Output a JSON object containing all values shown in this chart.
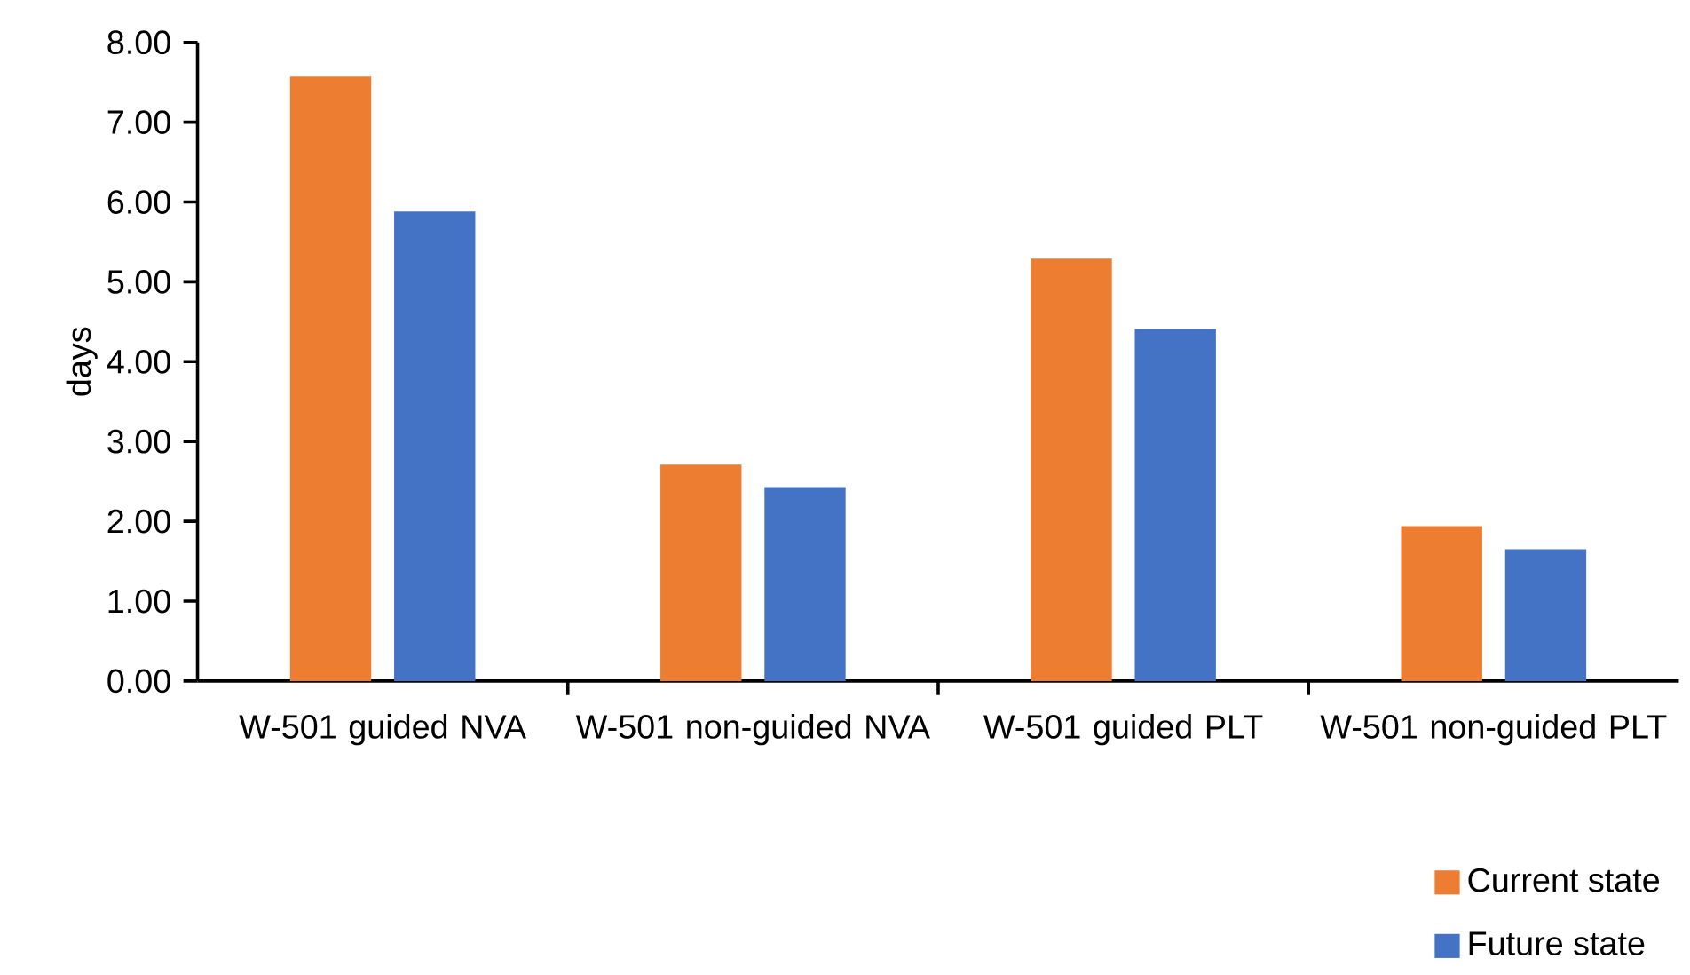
{
  "chart_data": {
    "type": "bar",
    "ylabel": "days",
    "categories": [
      "W-501 guided NVA",
      "W-501 non-guided NVA",
      "W-501 guided PLT",
      "W-501 non-guided PLT"
    ],
    "series": [
      {
        "name": "Current state",
        "color": "#ed7d31",
        "values": [
          7.57,
          2.71,
          5.29,
          1.94
        ]
      },
      {
        "name": "Future state",
        "color": "#4472c4",
        "values": [
          5.88,
          2.43,
          4.41,
          1.65
        ]
      }
    ],
    "ylim": [
      0,
      8
    ],
    "yticks": [
      {
        "value": 0,
        "label": "0.00"
      },
      {
        "value": 1,
        "label": "1.00"
      },
      {
        "value": 2,
        "label": "2.00"
      },
      {
        "value": 3,
        "label": "3.00"
      },
      {
        "value": 4,
        "label": "4.00"
      },
      {
        "value": 5,
        "label": "5.00"
      },
      {
        "value": 6,
        "label": "6.00"
      },
      {
        "value": 7,
        "label": "7.00"
      },
      {
        "value": 8,
        "label": "8.00"
      }
    ],
    "grid": false,
    "legend": "bottom right"
  }
}
